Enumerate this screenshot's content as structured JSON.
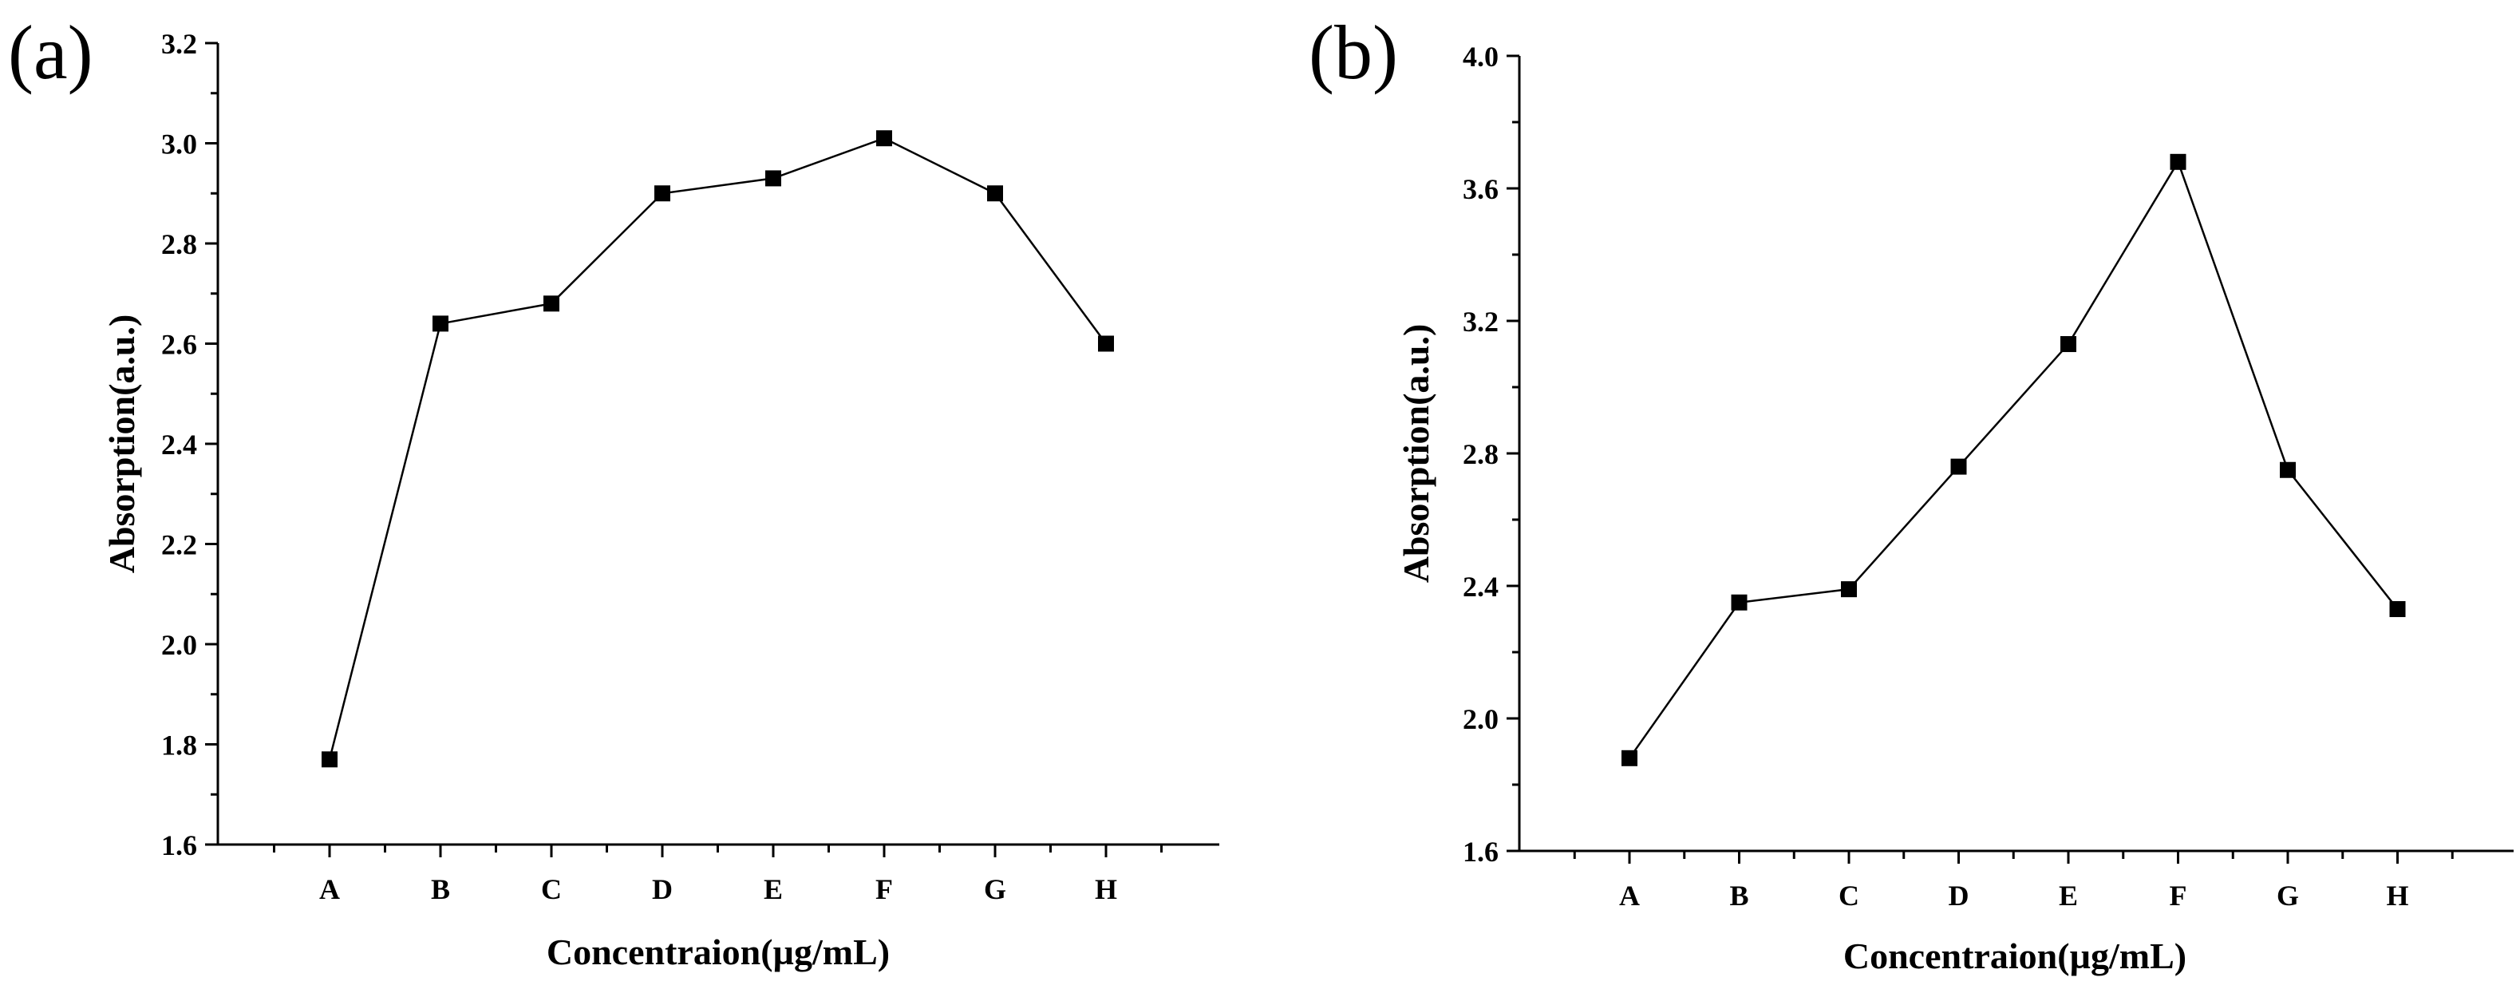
{
  "chart_data": [
    {
      "panel_label": "(a)",
      "type": "line",
      "marker": "square",
      "categories": [
        "A",
        "B",
        "C",
        "D",
        "E",
        "F",
        "G",
        "H"
      ],
      "values": [
        1.77,
        2.64,
        2.68,
        2.9,
        2.93,
        3.01,
        2.9,
        2.6
      ],
      "xlabel": "Concentraion(µg/mL)",
      "ylabel": "Absorption(a.u.)",
      "ylim": [
        1.6,
        3.2
      ],
      "yticks": [
        "1.6",
        "1.8",
        "2.0",
        "2.2",
        "2.4",
        "2.6",
        "2.8",
        "3.0",
        "3.2"
      ],
      "grid": false
    },
    {
      "panel_label": "(b)",
      "type": "line",
      "marker": "square",
      "categories": [
        "A",
        "B",
        "C",
        "D",
        "E",
        "F",
        "G",
        "H"
      ],
      "values": [
        1.88,
        2.35,
        2.39,
        2.76,
        3.13,
        3.68,
        2.75,
        2.33
      ],
      "xlabel": "Concentraion(µg/mL)",
      "ylabel": "Absorption(a.u.)",
      "ylim": [
        1.6,
        4.0
      ],
      "yticks": [
        "1.6",
        "2.0",
        "2.4",
        "2.8",
        "3.2",
        "3.6",
        "4.0"
      ],
      "grid": false
    }
  ]
}
